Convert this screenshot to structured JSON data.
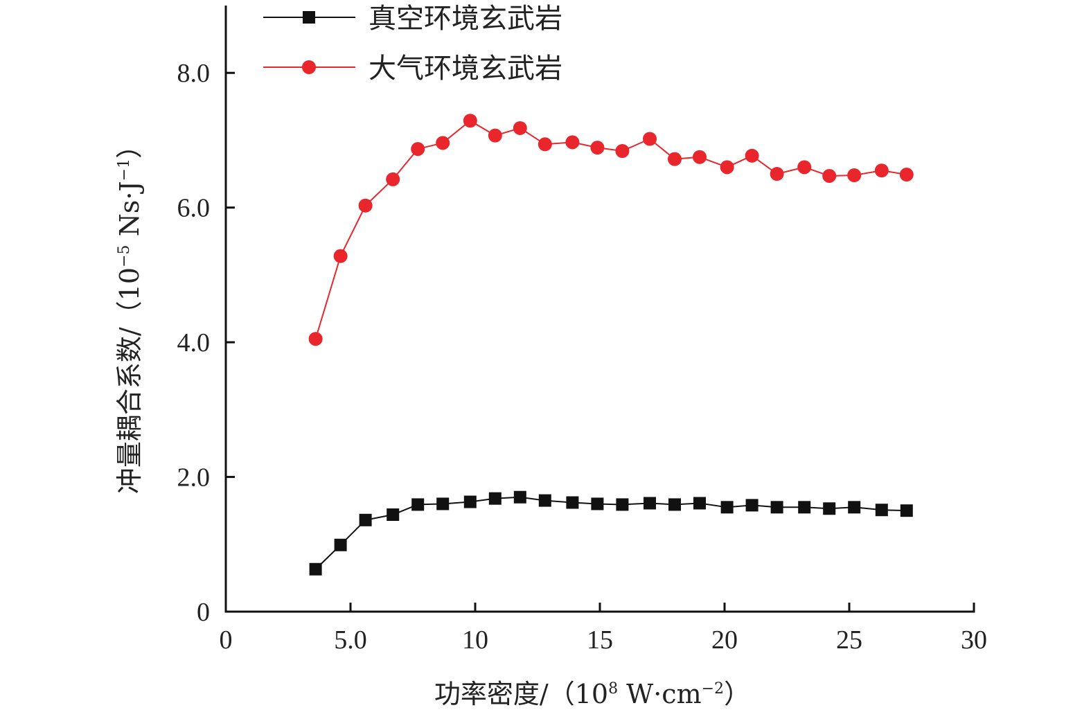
{
  "chart_data": {
    "type": "line",
    "title": "",
    "xlabel": "功率密度/（10⁸ W·cm⁻²）",
    "xlabel_parts": {
      "main": "功率密度/（10",
      "sup1": "8",
      "mid": " W·cm",
      "sup2": "−2",
      "end": "）"
    },
    "ylabel": "冲量耦合系数/（10⁻⁵ Ns·J⁻¹）",
    "ylabel_parts": {
      "main": "冲量耦合系数/（10",
      "sup1": "−5",
      "mid": " Ns·J",
      "sup2": "−1",
      "end": "）"
    },
    "xlim": [
      0,
      30
    ],
    "ylim": [
      0,
      9
    ],
    "grid": false,
    "legend_position": "top-left",
    "x_ticks": [
      {
        "value": 0,
        "label": "0"
      },
      {
        "value": 5,
        "label": "5.0"
      },
      {
        "value": 10,
        "label": "10"
      },
      {
        "value": 15,
        "label": "15"
      },
      {
        "value": 20,
        "label": "20"
      },
      {
        "value": 25,
        "label": "25"
      },
      {
        "value": 30,
        "label": "30"
      }
    ],
    "y_ticks": [
      {
        "value": 0,
        "label": "0"
      },
      {
        "value": 2,
        "label": "2.0"
      },
      {
        "value": 4,
        "label": "4.0"
      },
      {
        "value": 6,
        "label": "6.0"
      },
      {
        "value": 8,
        "label": "8.0"
      }
    ],
    "x": [
      3.6,
      4.6,
      5.6,
      6.7,
      7.7,
      8.7,
      9.8,
      10.8,
      11.8,
      12.8,
      13.9,
      14.9,
      15.9,
      17.0,
      18.0,
      19.0,
      20.1,
      21.1,
      22.1,
      23.2,
      24.2,
      25.2,
      26.3,
      27.3
    ],
    "series": [
      {
        "name": "真空环境玄武岩",
        "color": "#111111",
        "marker": "square",
        "values": [
          0.63,
          0.99,
          1.36,
          1.44,
          1.59,
          1.6,
          1.63,
          1.68,
          1.7,
          1.65,
          1.62,
          1.6,
          1.59,
          1.61,
          1.59,
          1.61,
          1.55,
          1.58,
          1.55,
          1.55,
          1.53,
          1.55,
          1.51,
          1.5
        ]
      },
      {
        "name": "大气环境玄武岩",
        "color": "#e8262b",
        "marker": "circle",
        "values": [
          4.05,
          5.28,
          6.03,
          6.42,
          6.87,
          6.96,
          7.29,
          7.07,
          7.18,
          6.94,
          6.97,
          6.89,
          6.84,
          7.02,
          6.72,
          6.75,
          6.6,
          6.77,
          6.5,
          6.6,
          6.47,
          6.48,
          6.55,
          6.49
        ]
      }
    ]
  }
}
